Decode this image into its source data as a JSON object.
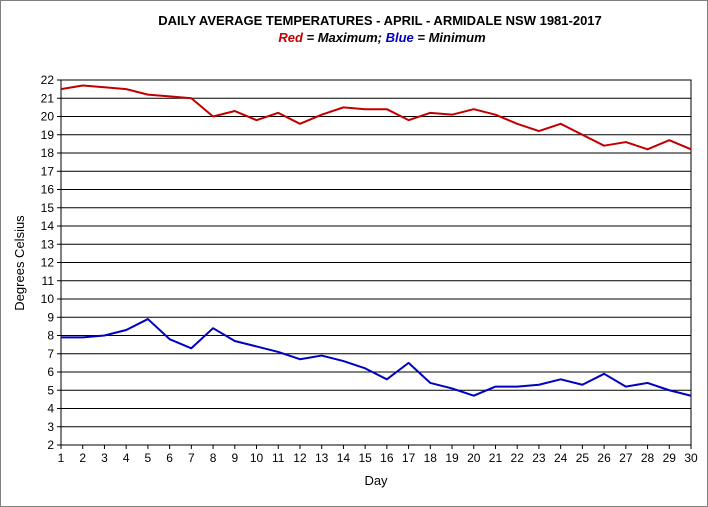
{
  "chart_data": {
    "type": "line",
    "title": "DAILY AVERAGE  TEMPERATURES - APRIL - ARMIDALE NSW  1981-2017",
    "subtitle": {
      "red_word": "Red",
      "red_rest": " = Maximum;  ",
      "blue_word": "Blue",
      "blue_rest": " = Minimum"
    },
    "xlabel": "Day",
    "ylabel": "Degrees Celsius",
    "xlim": [
      1,
      30
    ],
    "ylim": [
      2,
      22
    ],
    "y_ticks": [
      2,
      3,
      4,
      5,
      6,
      7,
      8,
      9,
      10,
      11,
      12,
      13,
      14,
      15,
      16,
      17,
      18,
      19,
      20,
      21,
      22
    ],
    "x": [
      1,
      2,
      3,
      4,
      5,
      6,
      7,
      8,
      9,
      10,
      11,
      12,
      13,
      14,
      15,
      16,
      17,
      18,
      19,
      20,
      21,
      22,
      23,
      24,
      25,
      26,
      27,
      28,
      29,
      30
    ],
    "grid": "horizontal",
    "series": [
      {
        "color": "#c00000",
        "values": [
          21.5,
          21.7,
          21.6,
          21.5,
          21.2,
          21.1,
          21.0,
          20.0,
          20.3,
          19.8,
          20.2,
          19.6,
          20.1,
          20.5,
          20.4,
          20.4,
          19.8,
          20.2,
          20.1,
          20.4,
          20.1,
          19.6,
          19.2,
          19.6,
          19.0,
          18.4,
          18.6,
          18.2,
          18.7,
          18.2
        ]
      },
      {
        "color": "#0000c0",
        "values": [
          7.9,
          7.9,
          8.0,
          8.3,
          8.9,
          7.8,
          7.3,
          8.4,
          7.7,
          7.4,
          7.1,
          6.7,
          6.9,
          6.6,
          6.2,
          5.6,
          6.5,
          5.4,
          5.1,
          4.7,
          5.2,
          5.2,
          5.3,
          5.6,
          5.3,
          5.9,
          5.2,
          5.4,
          5.0,
          4.7
        ]
      }
    ]
  }
}
